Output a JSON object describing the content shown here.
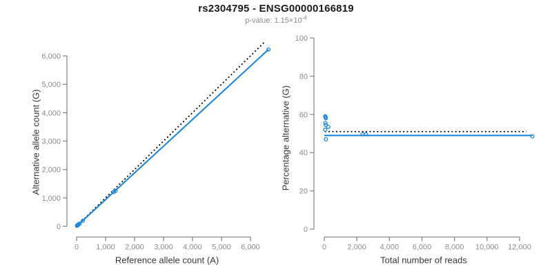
{
  "header": {
    "title": "rs2304795 - ENSG00000166819",
    "subtitle_prefix": "p-value: ",
    "subtitle_value": "1.15×10",
    "subtitle_exponent": "-4"
  },
  "colors": {
    "series_blue": "#1E87DC",
    "reference_black": "#000000",
    "axis_gray": "#888888",
    "tick_label_gray": "#8c8c8c",
    "axis_title_dark": "#383838"
  },
  "chart_data": [
    {
      "id": "allele-counts",
      "type": "scatter",
      "xlabel": "Reference allele count (A)",
      "ylabel": "Alternative allele count (G)",
      "xlim": [
        0,
        6600
      ],
      "ylim": [
        0,
        6600
      ],
      "xticks": [
        0,
        1000,
        2000,
        3000,
        4000,
        5000,
        6000
      ],
      "yticks": [
        0,
        1000,
        2000,
        3000,
        4000,
        5000,
        6000
      ],
      "grid": false,
      "legend": "none",
      "points": [
        [
          15,
          18
        ],
        [
          22,
          30
        ],
        [
          30,
          38
        ],
        [
          38,
          52
        ],
        [
          48,
          42
        ],
        [
          58,
          62
        ],
        [
          100,
          92
        ],
        [
          215,
          192
        ],
        [
          1285,
          1210
        ],
        [
          1345,
          1252
        ],
        [
          6620,
          6225
        ]
      ],
      "lines": [
        {
          "name": "identity-line",
          "style": "dotted",
          "color": "#000000",
          "x": [
            0,
            6500
          ],
          "y": [
            0,
            6500
          ]
        },
        {
          "name": "fit-line",
          "style": "solid",
          "color": "#1E87DC",
          "x": [
            0,
            6620
          ],
          "y": [
            0,
            6225
          ]
        }
      ]
    },
    {
      "id": "percentage-vs-reads",
      "type": "scatter",
      "xlabel": "Total number of reads",
      "ylabel": "Percentage alternative (G)",
      "xlim": [
        0,
        12800
      ],
      "ylim": [
        0,
        100
      ],
      "xticks": [
        0,
        2000,
        4000,
        6000,
        8000,
        10000,
        12000
      ],
      "yticks": [
        0,
        20,
        40,
        60,
        80,
        100
      ],
      "grid": false,
      "legend": "none",
      "points": [
        [
          55,
          59
        ],
        [
          75,
          58.5
        ],
        [
          95,
          58
        ],
        [
          65,
          55.5
        ],
        [
          90,
          54.5
        ],
        [
          245,
          53.5
        ],
        [
          55,
          52
        ],
        [
          100,
          47
        ],
        [
          2350,
          49.6
        ],
        [
          2560,
          49.6
        ],
        [
          12790,
          48.5
        ]
      ],
      "lines": [
        {
          "name": "expected-line",
          "style": "dotted",
          "color": "#000000",
          "x": [
            30,
            12420
          ],
          "y": [
            51,
            51
          ]
        },
        {
          "name": "mean-line",
          "style": "solid",
          "color": "#1E87DC",
          "x": [
            0,
            12790
          ],
          "y": [
            49,
            49
          ]
        }
      ]
    }
  ]
}
